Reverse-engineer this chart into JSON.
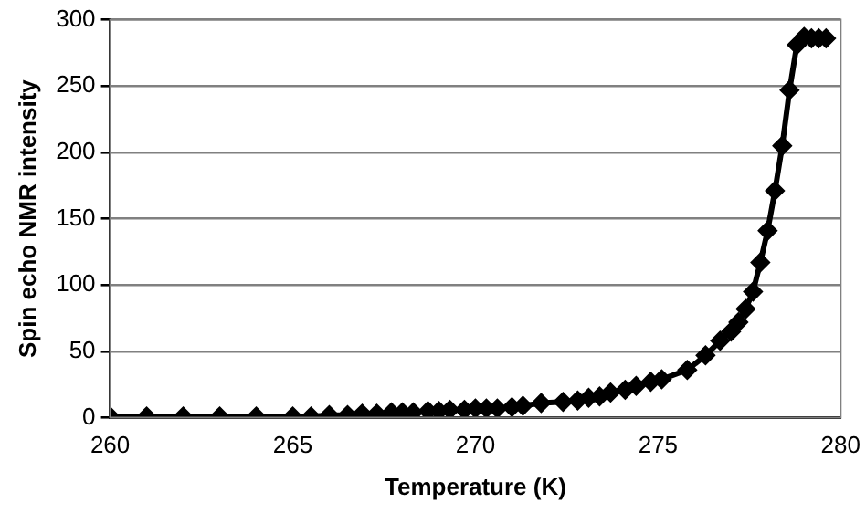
{
  "chart_data": {
    "type": "line",
    "xlabel": "Temperature (K)",
    "ylabel": "Spin echo NMR intensity",
    "x": [
      260,
      261,
      262,
      263,
      264,
      265,
      265.5,
      266,
      266.5,
      266.9,
      267.3,
      267.7,
      268,
      268.3,
      268.7,
      269,
      269.3,
      269.7,
      270,
      270.3,
      270.6,
      271,
      271.3,
      271.8,
      272.4,
      272.8,
      273.1,
      273.4,
      273.7,
      274.1,
      274.4,
      274.8,
      275.1,
      275.8,
      276.3,
      276.7,
      277,
      277.2,
      277.4,
      277.6,
      277.8,
      278,
      278.2,
      278.4,
      278.6,
      278.8,
      279,
      279.2,
      279.4,
      279.6
    ],
    "series": [
      {
        "color": "#000000",
        "values": [
          1,
          1,
          1,
          1,
          1,
          1,
          1,
          2,
          2,
          3,
          3,
          4,
          4,
          4,
          5,
          5,
          6,
          6,
          7,
          7,
          7,
          8,
          9,
          11,
          12,
          13,
          15,
          16,
          19,
          21,
          24,
          27,
          29,
          36,
          47,
          58,
          65,
          72,
          82,
          95,
          117,
          141,
          171,
          205,
          247,
          281,
          287,
          286,
          286,
          286
        ]
      }
    ],
    "xlim": [
      260,
      280
    ],
    "xticks": [
      260,
      265,
      270,
      275,
      280
    ],
    "ylim": [
      0,
      300
    ],
    "yticks": [
      0,
      50,
      100,
      150,
      200,
      250,
      300
    ],
    "grid": "y",
    "legend": false,
    "marker": "diamond",
    "line_style": "solid"
  }
}
